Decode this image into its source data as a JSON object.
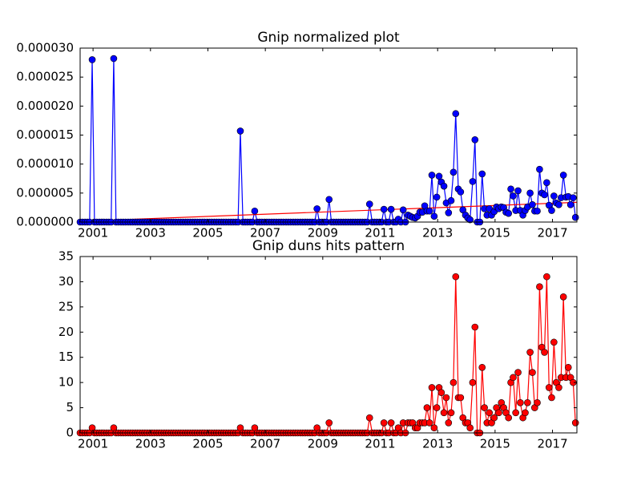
{
  "chart_data": [
    {
      "type": "line",
      "title": "Gnip normalized plot",
      "xlim": [
        2000.55,
        2017.85
      ],
      "xticks": [
        2001,
        2003,
        2005,
        2007,
        2009,
        2011,
        2013,
        2015,
        2017
      ],
      "ylim": [
        0,
        3e-05
      ],
      "yticks": [
        {
          "value": 0,
          "label": "0.000000"
        },
        {
          "value": 5e-06,
          "label": "0.000005"
        },
        {
          "value": 1e-05,
          "label": "0.000010"
        },
        {
          "value": 1.5e-05,
          "label": "0.000015"
        },
        {
          "value": 2e-05,
          "label": "0.000020"
        },
        {
          "value": 2.5e-05,
          "label": "0.000025"
        },
        {
          "value": 3e-05,
          "label": "0.000030"
        }
      ],
      "color": "#0000ff",
      "x": [
        2000.55,
        2000.63,
        2000.72,
        2000.8,
        2000.88,
        2000.97,
        2001.05,
        2001.13,
        2001.22,
        2001.3,
        2001.38,
        2001.47,
        2001.55,
        2001.63,
        2001.72,
        2001.8,
        2001.88,
        2001.97,
        2002.05,
        2002.13,
        2002.22,
        2002.3,
        2002.38,
        2002.47,
        2002.55,
        2002.63,
        2002.72,
        2002.8,
        2002.88,
        2002.97,
        2003.05,
        2003.13,
        2003.22,
        2003.3,
        2003.38,
        2003.47,
        2003.55,
        2003.63,
        2003.72,
        2003.8,
        2003.88,
        2003.97,
        2004.05,
        2004.13,
        2004.22,
        2004.3,
        2004.38,
        2004.47,
        2004.55,
        2004.63,
        2004.72,
        2004.8,
        2004.88,
        2004.97,
        2005.05,
        2005.13,
        2005.22,
        2005.3,
        2005.38,
        2005.47,
        2005.55,
        2005.63,
        2005.72,
        2005.8,
        2005.88,
        2005.97,
        2006.05,
        2006.13,
        2006.22,
        2006.3,
        2006.38,
        2006.47,
        2006.55,
        2006.63,
        2006.72,
        2006.8,
        2006.88,
        2006.97,
        2007.05,
        2007.13,
        2007.22,
        2007.3,
        2007.38,
        2007.47,
        2007.55,
        2007.63,
        2007.72,
        2007.8,
        2007.88,
        2007.97,
        2008.05,
        2008.13,
        2008.22,
        2008.3,
        2008.38,
        2008.47,
        2008.55,
        2008.63,
        2008.72,
        2008.8,
        2008.88,
        2008.97,
        2009.05,
        2009.13,
        2009.22,
        2009.3,
        2009.38,
        2009.47,
        2009.55,
        2009.63,
        2009.72,
        2009.8,
        2009.88,
        2009.97,
        2010.05,
        2010.13,
        2010.22,
        2010.3,
        2010.38,
        2010.47,
        2010.55,
        2010.63,
        2010.72,
        2010.8,
        2010.88,
        2010.97,
        2011.05,
        2011.13,
        2011.22,
        2011.3,
        2011.38,
        2011.47,
        2011.55,
        2011.63,
        2011.72,
        2011.8,
        2011.88,
        2011.97,
        2012.05,
        2012.13,
        2012.22,
        2012.3,
        2012.38,
        2012.47,
        2012.55,
        2012.63,
        2012.72,
        2012.8,
        2012.88,
        2012.97,
        2013.05,
        2013.13,
        2013.22,
        2013.3,
        2013.38,
        2013.47,
        2013.55,
        2013.63,
        2013.72,
        2013.8,
        2013.88,
        2013.97,
        2014.05,
        2014.13,
        2014.22,
        2014.3,
        2014.38,
        2014.47,
        2014.55,
        2014.63,
        2014.72,
        2014.8,
        2014.88,
        2014.97,
        2015.05,
        2015.13,
        2015.22,
        2015.3,
        2015.38,
        2015.47,
        2015.55,
        2015.63,
        2015.72,
        2015.8,
        2015.88,
        2015.97,
        2016.05,
        2016.13,
        2016.22,
        2016.3,
        2016.38,
        2016.47,
        2016.55,
        2016.63,
        2016.72,
        2016.8,
        2016.88,
        2016.97,
        2017.05,
        2017.13,
        2017.22,
        2017.3,
        2017.38,
        2017.47,
        2017.55,
        2017.63,
        2017.72,
        2017.8
      ],
      "values": [
        0,
        0,
        0,
        0,
        0,
        2.8e-05,
        0,
        0,
        0,
        0,
        0,
        0,
        0,
        0,
        2.82e-05,
        0,
        0,
        0,
        0,
        0,
        0,
        0,
        0,
        0,
        0,
        0,
        0,
        0,
        0,
        0,
        0,
        0,
        0,
        0,
        0,
        0,
        0,
        0,
        0,
        0,
        0,
        0,
        0,
        0,
        0,
        0,
        0,
        0,
        0,
        0,
        0,
        0,
        0,
        0,
        0,
        0,
        0,
        0,
        0,
        0,
        0,
        0,
        0,
        0,
        0,
        0,
        0,
        1.57e-05,
        0,
        0,
        0,
        0,
        0,
        1.9e-06,
        0,
        0,
        0,
        0,
        0,
        0,
        0,
        0,
        0,
        0,
        0,
        0,
        0,
        0,
        0,
        0,
        0,
        0,
        0,
        0,
        0,
        0,
        0,
        0,
        0,
        2.3e-06,
        0,
        0,
        0,
        0,
        3.9e-06,
        0,
        0,
        0,
        0,
        0,
        0,
        0,
        0,
        0,
        0,
        0,
        0,
        0,
        0,
        0,
        0,
        3.1e-06,
        0,
        0,
        0,
        0,
        0,
        2.2e-06,
        0,
        0,
        2.2e-06,
        0,
        0,
        5e-07,
        0,
        2.1e-06,
        0,
        1.2e-06,
        1e-06,
        8e-07,
        7e-07,
        1e-06,
        1.7e-06,
        1.7e-06,
        2.8e-06,
        1.9e-06,
        1.9e-06,
        8.1e-06,
        1e-06,
        4.3e-06,
        7.9e-06,
        6.9e-06,
        6.2e-06,
        3.3e-06,
        1.6e-06,
        3.7e-06,
        8.6e-06,
        1.87e-05,
        5.7e-06,
        5.2e-06,
        2.1e-06,
        1.2e-06,
        7e-07,
        4e-07,
        7e-06,
        1.42e-05,
        0,
        0,
        8.3e-06,
        2.3e-06,
        1.2e-06,
        2.3e-06,
        1.2e-06,
        1.8e-06,
        2.6e-06,
        2.3e-06,
        2.6e-06,
        2.5e-06,
        1.7e-06,
        1.5e-06,
        5.7e-06,
        4.5e-06,
        2e-06,
        5.4e-06,
        2e-06,
        1.2e-06,
        2e-06,
        2.6e-06,
        5e-06,
        3e-06,
        1.9e-06,
        1.9e-06,
        9.1e-06,
        5e-06,
        4.7e-06,
        6.8e-06,
        2.9e-06,
        2e-06,
        4.5e-06,
        3.3e-06,
        3e-06,
        4.2e-06,
        8.1e-06,
        4.3e-06,
        4.4e-06,
        3e-06,
        4.2e-06,
        8e-07
      ],
      "trend": {
        "color": "#ff0000",
        "x": [
          2000.55,
          2017.85
        ],
        "values": [
          1.4e-07,
          3.4e-06
        ]
      }
    },
    {
      "type": "line",
      "title": "Gnip duns hits pattern",
      "xlim": [
        2000.55,
        2017.85
      ],
      "xticks": [
        2001,
        2003,
        2005,
        2007,
        2009,
        2011,
        2013,
        2015,
        2017
      ],
      "ylim": [
        0,
        35
      ],
      "yticks": [
        0,
        5,
        10,
        15,
        20,
        25,
        30,
        35
      ],
      "color": "#ff0000",
      "values": [
        0,
        0,
        0,
        0,
        0,
        1,
        0,
        0,
        0,
        0,
        0,
        0,
        0,
        0,
        1,
        0,
        0,
        0,
        0,
        0,
        0,
        0,
        0,
        0,
        0,
        0,
        0,
        0,
        0,
        0,
        0,
        0,
        0,
        0,
        0,
        0,
        0,
        0,
        0,
        0,
        0,
        0,
        0,
        0,
        0,
        0,
        0,
        0,
        0,
        0,
        0,
        0,
        0,
        0,
        0,
        0,
        0,
        0,
        0,
        0,
        0,
        0,
        0,
        0,
        0,
        0,
        0,
        1,
        0,
        0,
        0,
        0,
        0,
        1,
        0,
        0,
        0,
        0,
        0,
        0,
        0,
        0,
        0,
        0,
        0,
        0,
        0,
        0,
        0,
        0,
        0,
        0,
        0,
        0,
        0,
        0,
        0,
        0,
        0,
        1,
        0,
        0,
        0,
        0,
        2,
        0,
        0,
        0,
        0,
        0,
        0,
        0,
        0,
        0,
        0,
        0,
        0,
        0,
        0,
        0,
        0,
        3,
        0,
        0,
        0,
        0,
        0,
        2,
        0,
        0,
        2,
        0,
        0,
        1,
        0,
        2,
        0,
        2,
        2,
        2,
        1,
        1,
        2,
        2,
        2,
        5,
        2,
        9,
        1,
        5,
        9,
        8,
        4,
        7,
        2,
        4,
        10,
        31,
        7,
        7,
        3,
        2,
        2,
        1,
        10,
        21,
        0,
        0,
        13,
        5,
        2,
        4,
        2,
        3,
        5,
        4,
        6,
        5,
        4,
        3,
        10,
        11,
        4,
        12,
        6,
        3,
        4,
        6,
        16,
        12,
        5,
        6,
        29,
        17,
        16,
        31,
        9,
        7,
        18,
        10,
        9,
        11,
        27,
        11,
        13,
        11,
        10,
        2
      ]
    }
  ]
}
